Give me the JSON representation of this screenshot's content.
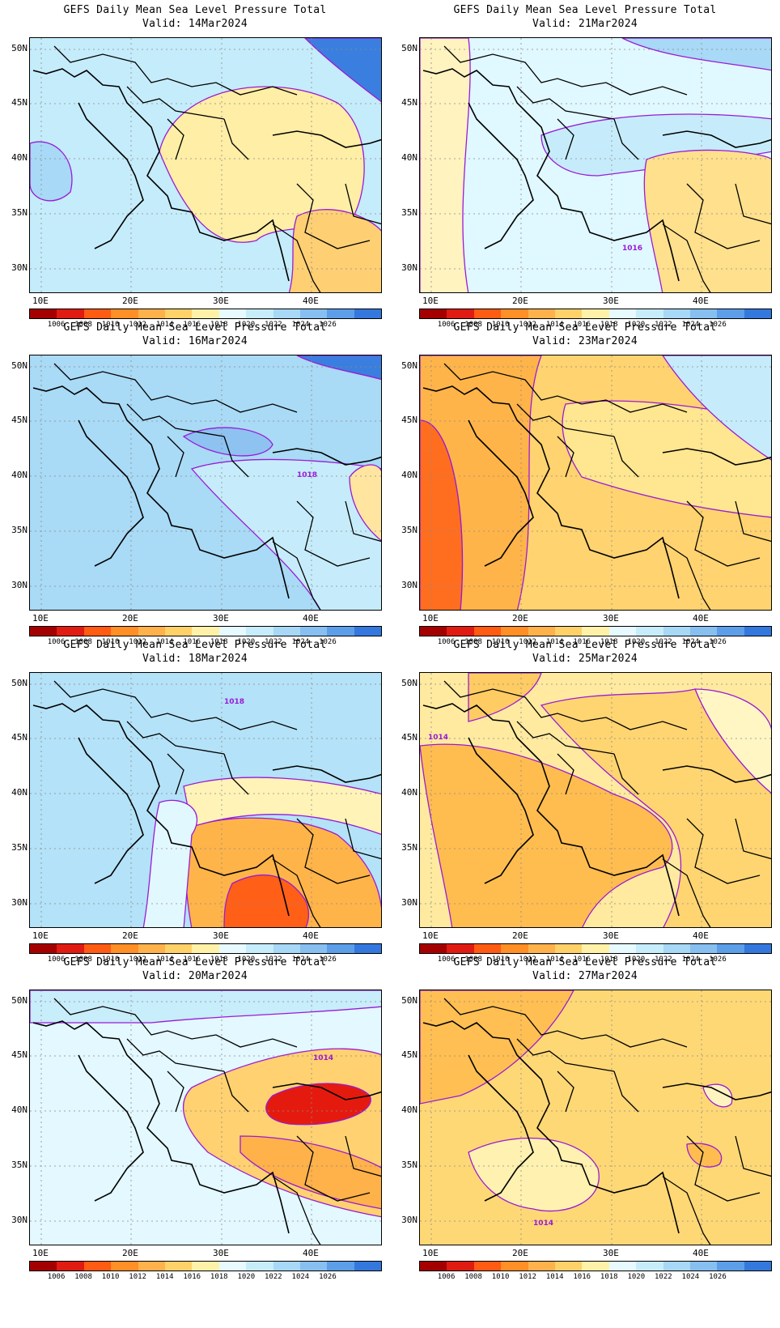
{
  "title_line1": "GEFS Daily Mean Sea Level Pressure Total",
  "panels": [
    {
      "valid": "Valid:  14Mar2024",
      "contour_label": "",
      "colors": {
        "bg": "#c5ecfb",
        "a": "#ffeea6",
        "b": "#a8d9f7",
        "c": "#3a7fdf",
        "d": "#ffcf74"
      }
    },
    {
      "valid": "Valid:  21Mar2024",
      "contour_label": "1016",
      "colors": {
        "bg": "#e0f8ff",
        "a": "#fff3c0",
        "b": "#c6ecfb",
        "c": "#a8d9f7",
        "d": "#ffe08c"
      }
    },
    {
      "valid": "Valid:  16Mar2024",
      "contour_label": "1018",
      "colors": {
        "bg": "#a9daf6",
        "a": "#c6ecfb",
        "b": "#8dc2f1",
        "c": "#3a7fdf",
        "d": "#ffe5a0"
      }
    },
    {
      "valid": "Valid:  23Mar2024",
      "contour_label": "",
      "colors": {
        "bg": "#ffd36f",
        "a": "#ff6e1f",
        "b": "#ffe690",
        "c": "#c6ecfb",
        "d": "#ffb449"
      }
    },
    {
      "valid": "Valid:  18Mar2024",
      "contour_label": "1018",
      "colors": {
        "bg": "#b4e2f8",
        "a": "#ffb449",
        "b": "#fff3b8",
        "c": "#ff5f17",
        "d": "#e2f8ff"
      }
    },
    {
      "valid": "Valid:  25Mar2024",
      "contour_label": "1014",
      "colors": {
        "bg": "#ffeaa0",
        "a": "#ffbd4f",
        "b": "#fff6c4",
        "c": "#ffd571",
        "d": "#ffcb63"
      }
    },
    {
      "valid": "Valid:  20Mar2024",
      "contour_label": "1014",
      "colors": {
        "bg": "#e3f8ff",
        "a": "#ffd170",
        "b": "#c8edfb",
        "c": "#e51a0f",
        "d": "#ffb14a"
      }
    },
    {
      "valid": "Valid:  27Mar2024",
      "contour_label": "1014",
      "colors": {
        "bg": "#ffd876",
        "a": "#ffbf52",
        "b": "#fff1b0",
        "c": "#ffbd50",
        "d": "#fff4c0"
      }
    }
  ],
  "lat_labels": [
    "50N",
    "45N",
    "40N",
    "35N",
    "30N"
  ],
  "lon_labels": [
    "10E",
    "20E",
    "30E",
    "40E"
  ],
  "colorbar": {
    "ticks": [
      "1006",
      "1008",
      "1010",
      "1012",
      "1014",
      "1016",
      "1018",
      "1020",
      "1022",
      "1024",
      "1026"
    ],
    "colors": [
      "#a50000",
      "#e01b12",
      "#ff5b12",
      "#ff8f26",
      "#ffb24b",
      "#ffd169",
      "#fff2a8",
      "#e6faff",
      "#c7edfb",
      "#a7d8f5",
      "#87bff0",
      "#5d9ee9",
      "#3478dd"
    ]
  }
}
